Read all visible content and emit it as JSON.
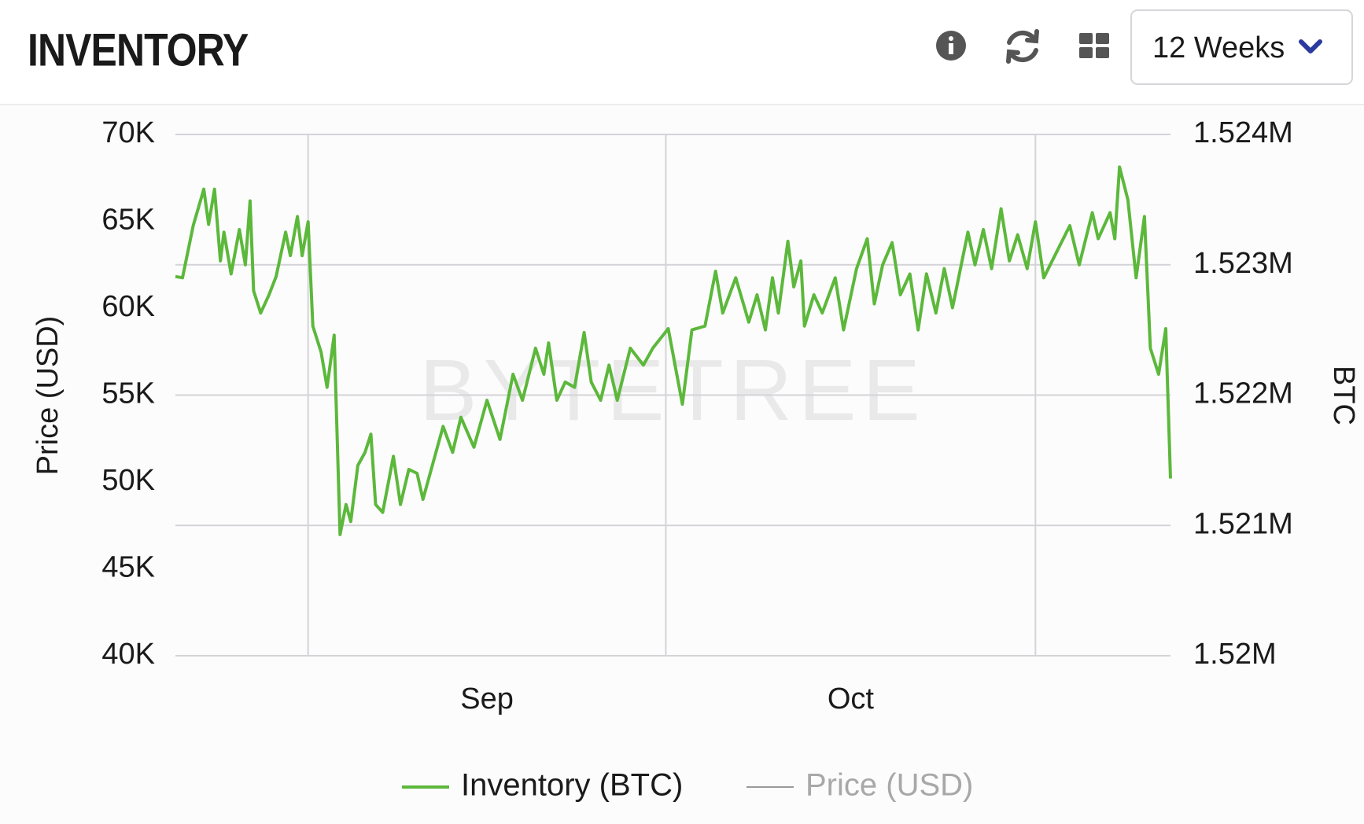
{
  "header": {
    "title": "INVENTORY",
    "range_select": "12 Weeks"
  },
  "chart_data": {
    "type": "line",
    "watermark": "BYTETREE",
    "ylabel": "Price (USD)",
    "y2label": "BTC",
    "xlim": [
      0,
      84
    ],
    "xgrid": [
      11.2,
      41.4,
      72.6
    ],
    "xticks": [
      {
        "value": 26.3,
        "label": "Sep"
      },
      {
        "value": 57.0,
        "label": "Oct"
      }
    ],
    "ylim": [
      40000,
      70000
    ],
    "yticks": [
      {
        "value": 40000,
        "label": "40K"
      },
      {
        "value": 45000,
        "label": "45K"
      },
      {
        "value": 50000,
        "label": "50K"
      },
      {
        "value": 55000,
        "label": "55K"
      },
      {
        "value": 60000,
        "label": "60K"
      },
      {
        "value": 65000,
        "label": "65K"
      },
      {
        "value": 70000,
        "label": "70K"
      }
    ],
    "y2lim": [
      1520000,
      1524000
    ],
    "y2ticks": [
      {
        "value": 1520000,
        "label": "1.52M"
      },
      {
        "value": 1521000,
        "label": "1.521M"
      },
      {
        "value": 1522000,
        "label": "1.522M"
      },
      {
        "value": 1523000,
        "label": "1.523M"
      },
      {
        "value": 1524000,
        "label": "1.524M"
      }
    ],
    "grid": "y2",
    "legend": "bottom",
    "x": [
      0,
      0.6,
      1.5,
      2.4,
      2.8,
      3.3,
      3.8,
      4.1,
      4.7,
      5.4,
      5.9,
      6.3,
      6.6,
      7.2,
      7.9,
      8.5,
      9.3,
      9.7,
      10.3,
      10.7,
      11.2,
      11.6,
      12.3,
      12.8,
      13.4,
      13.9,
      14.4,
      14.8,
      15.4,
      16.0,
      16.5,
      16.9,
      17.5,
      18.4,
      19.0,
      19.7,
      20.4,
      20.9,
      21.9,
      22.6,
      23.4,
      24.1,
      25.2,
      26.3,
      27.4,
      28.5,
      29.3,
      30.4,
      31.1,
      31.5,
      32.2,
      32.9,
      33.7,
      34.5,
      35.1,
      35.9,
      36.6,
      37.3,
      38.4,
      39.5,
      40.3,
      41.6,
      42.8,
      43.6,
      44.7,
      45.6,
      46.2,
      47.3,
      48.4,
      49.1,
      49.8,
      50.4,
      50.9,
      51.7,
      52.2,
      52.8,
      53.1,
      53.9,
      54.6,
      55.7,
      56.4,
      57.5,
      58.4,
      59.0,
      59.7,
      60.5,
      61.2,
      62.0,
      62.7,
      63.4,
      64.2,
      64.9,
      65.6,
      66.4,
      66.9,
      67.5,
      68.2,
      68.9,
      69.7,
      70.4,
      71.1,
      71.9,
      72.6,
      73.3,
      74.4,
      75.5,
      76.3,
      77.4,
      77.9,
      78.9,
      79.3,
      79.7,
      80.4,
      81.1,
      81.8,
      82.3,
      83.0,
      83.6,
      84.0
    ],
    "series": [
      {
        "name": "Inventory (BTC)",
        "color": "#5cb83b",
        "axis": "y2",
        "values": [
          1522910,
          1522900,
          1523300,
          1523580,
          1523310,
          1523580,
          1523030,
          1523250,
          1522930,
          1523270,
          1523000,
          1523490,
          1522800,
          1522630,
          1522770,
          1522910,
          1523250,
          1523070,
          1523370,
          1523070,
          1523330,
          1522530,
          1522330,
          1522060,
          1522460,
          1520930,
          1521160,
          1521030,
          1521460,
          1521560,
          1521700,
          1521160,
          1521100,
          1521530,
          1521160,
          1521430,
          1521400,
          1521200,
          1521530,
          1521760,
          1521560,
          1521830,
          1521600,
          1521960,
          1521660,
          1522160,
          1521960,
          1522360,
          1522160,
          1522400,
          1521960,
          1522100,
          1522060,
          1522480,
          1522100,
          1521960,
          1522230,
          1521960,
          1522360,
          1522230,
          1522360,
          1522510,
          1521930,
          1522500,
          1522530,
          1522950,
          1522630,
          1522900,
          1522560,
          1522770,
          1522500,
          1522900,
          1522630,
          1523180,
          1522830,
          1523030,
          1522530,
          1522770,
          1522630,
          1522900,
          1522500,
          1522970,
          1523200,
          1522700,
          1523000,
          1523170,
          1522770,
          1522930,
          1522500,
          1522930,
          1522630,
          1522970,
          1522670,
          1523030,
          1523250,
          1523000,
          1523270,
          1522970,
          1523430,
          1523030,
          1523230,
          1522970,
          1523330,
          1522900,
          1523100,
          1523300,
          1523000,
          1523400,
          1523200,
          1523400,
          1523200,
          1523750,
          1523500,
          1522900,
          1523370,
          1522360,
          1522160,
          1522510,
          1521360
        ]
      },
      {
        "name": "Price (USD)",
        "color": "#9a9a9a",
        "axis": "y",
        "hidden": true
      }
    ]
  }
}
